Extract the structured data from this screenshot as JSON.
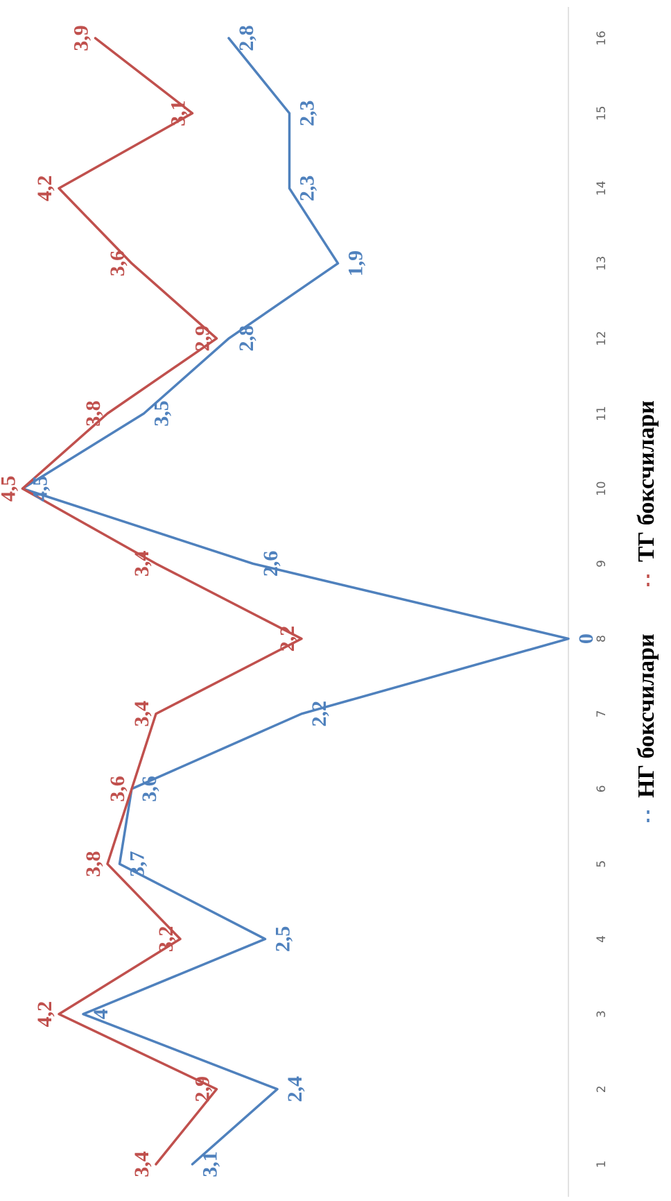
{
  "chart_data": {
    "type": "line",
    "orientation": "rotated-90-clockwise",
    "x": [
      "1",
      "2",
      "3",
      "4",
      "5",
      "6",
      "7",
      "8",
      "9",
      "10",
      "11",
      "12",
      "13",
      "14",
      "15",
      "16"
    ],
    "ylim": [
      0,
      4.5
    ],
    "grid": false,
    "legend_position": "bottom",
    "series": [
      {
        "name": "НГ боксчилари",
        "color": "#4f81bd",
        "values": [
          3.1,
          2.4,
          4,
          2.5,
          3.7,
          3.6,
          2.2,
          0,
          2.6,
          4.5,
          3.5,
          2.8,
          1.9,
          2.3,
          2.3,
          2.8
        ],
        "labels": [
          "3,1",
          "2,4",
          "4",
          "2,5",
          "3,7",
          "3,6",
          "2,2",
          "0",
          "2,6",
          "4,5",
          "3,5",
          "2,8",
          "1,9",
          "2,3",
          "2,3",
          "2,8"
        ]
      },
      {
        "name": "ТГ боксчилари",
        "color": "#c0504d",
        "values": [
          3.4,
          2.9,
          4.2,
          3.2,
          3.8,
          3.6,
          3.4,
          2.2,
          3.4,
          4.5,
          3.8,
          2.9,
          3.6,
          4.2,
          3.1,
          3.9
        ],
        "labels": [
          "3,4",
          "2,9",
          "4,2",
          "3,2",
          "3,8",
          "3,6",
          "3,4",
          "2,2",
          "3,4",
          "4,5",
          "3,8",
          "2,9",
          "3,6",
          "4,2",
          "3,1",
          "3,9"
        ]
      }
    ]
  }
}
